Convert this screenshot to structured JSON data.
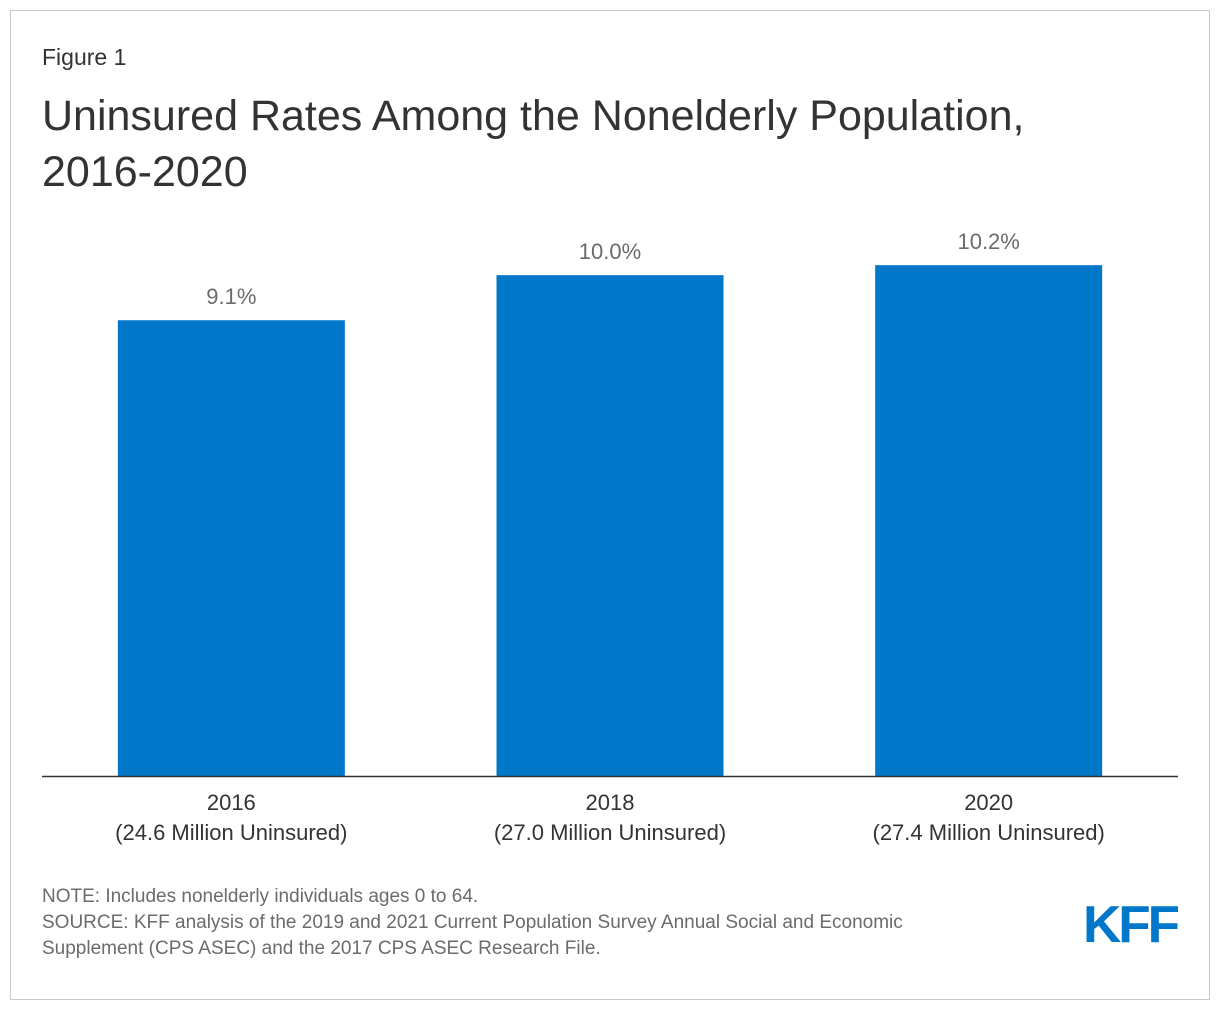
{
  "header": {
    "figure_label": "Figure 1",
    "title_line1": "Uninsured Rates Among the Nonelderly Population,",
    "title_line2": "2016-2020"
  },
  "chart_data": {
    "type": "bar",
    "title": "Uninsured Rates Among the Nonelderly Population, 2016-2020",
    "categories": [
      "2016",
      "2018",
      "2020"
    ],
    "category_sublabels": [
      "(24.6 Million Uninsured)",
      "(27.0 Million Uninsured)",
      "(27.4 Million Uninsured)"
    ],
    "values": [
      9.1,
      10.0,
      10.2
    ],
    "value_labels": [
      "9.1%",
      "10.0%",
      "10.2%"
    ],
    "unit": "%",
    "xlabel": "",
    "ylabel": "",
    "ylim": [
      0,
      11.9
    ],
    "grid": false,
    "bar_color": "#0077c8",
    "axis_color": "#333333"
  },
  "footer": {
    "note": "NOTE: Includes nonelderly individuals ages 0 to 64.",
    "source_line1": "SOURCE: KFF analysis of the 2019 and 2021 Current Population Survey Annual Social and Economic",
    "source_line2": "Supplement (CPS ASEC) and the 2017 CPS ASEC Research File."
  },
  "logo": {
    "text": "KFF",
    "color": "#0077c8"
  }
}
